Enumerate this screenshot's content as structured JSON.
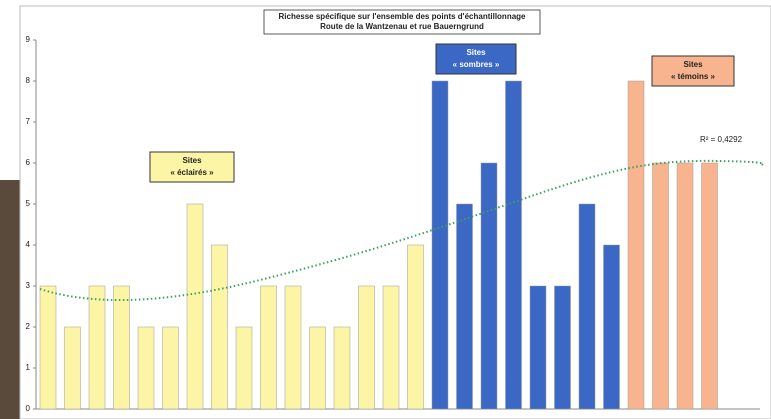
{
  "chart_data": {
    "type": "bar",
    "title": "Richesse spécifique sur l'ensemble des points d'échantillonnage",
    "subtitle": "Route de la Wantzenau et rue Bauerngrund",
    "categories": [
      null,
      null,
      null,
      null,
      null,
      null,
      null,
      null,
      null,
      null,
      null,
      null,
      null,
      null,
      null,
      null,
      null,
      null,
      null,
      null,
      null,
      null,
      null,
      null,
      null,
      null,
      null,
      null
    ],
    "values": [
      3,
      2,
      3,
      3,
      2,
      2,
      5,
      4,
      2,
      3,
      3,
      2,
      2,
      3,
      3,
      4,
      8,
      5,
      6,
      8,
      3,
      3,
      5,
      4,
      8,
      6,
      6,
      6
    ],
    "colors": [
      "#fdf5a6",
      "#fdf5a6",
      "#fdf5a6",
      "#fdf5a6",
      "#fdf5a6",
      "#fdf5a6",
      "#fdf5a6",
      "#fdf5a6",
      "#fdf5a6",
      "#fdf5a6",
      "#fdf5a6",
      "#fdf5a6",
      "#fdf5a6",
      "#fdf5a6",
      "#fdf5a6",
      "#fdf5a6",
      "#3a68c4",
      "#3a68c4",
      "#3a68c4",
      "#3a68c4",
      "#3a68c4",
      "#3a68c4",
      "#3a68c4",
      "#3a68c4",
      "#f8b48e",
      "#f8b48e",
      "#f8b48e",
      "#f8b48e"
    ],
    "ylim": [
      0,
      9
    ],
    "yticks": [
      0,
      1,
      2,
      3,
      4,
      5,
      6,
      7,
      8,
      9
    ],
    "grid": false,
    "annotations": [
      [
        "Sites",
        "« éclairés »"
      ],
      [
        "Sites",
        "« sombres »"
      ],
      [
        "Sites",
        "« témoins »"
      ]
    ],
    "r2_label": "R² = 0,4292"
  }
}
